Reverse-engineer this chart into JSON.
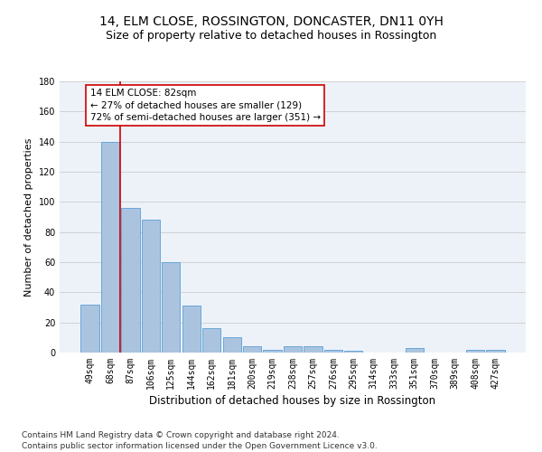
{
  "title": "14, ELM CLOSE, ROSSINGTON, DONCASTER, DN11 0YH",
  "subtitle": "Size of property relative to detached houses in Rossington",
  "xlabel": "Distribution of detached houses by size in Rossington",
  "ylabel": "Number of detached properties",
  "categories": [
    "49sqm",
    "68sqm",
    "87sqm",
    "106sqm",
    "125sqm",
    "144sqm",
    "162sqm",
    "181sqm",
    "200sqm",
    "219sqm",
    "238sqm",
    "257sqm",
    "276sqm",
    "295sqm",
    "314sqm",
    "333sqm",
    "351sqm",
    "370sqm",
    "389sqm",
    "408sqm",
    "427sqm"
  ],
  "values": [
    32,
    140,
    96,
    88,
    60,
    31,
    16,
    10,
    4,
    2,
    4,
    4,
    2,
    1,
    0,
    0,
    3,
    0,
    0,
    2,
    2
  ],
  "bar_color": "#aac4e0",
  "bar_edge_color": "#5a9fd4",
  "vline_x": 1.5,
  "vline_color": "#cc0000",
  "annotation_line1": "14 ELM CLOSE: 82sqm",
  "annotation_line2": "← 27% of detached houses are smaller (129)",
  "annotation_line3": "72% of semi-detached houses are larger (351) →",
  "annotation_box_color": "#ffffff",
  "annotation_box_edge_color": "#cc0000",
  "ylim": [
    0,
    180
  ],
  "yticks": [
    0,
    20,
    40,
    60,
    80,
    100,
    120,
    140,
    160,
    180
  ],
  "grid_color": "#cccccc",
  "bg_color": "#edf2f9",
  "footer_line1": "Contains HM Land Registry data © Crown copyright and database right 2024.",
  "footer_line2": "Contains public sector information licensed under the Open Government Licence v3.0.",
  "title_fontsize": 10,
  "subtitle_fontsize": 9,
  "xlabel_fontsize": 8.5,
  "ylabel_fontsize": 8,
  "tick_fontsize": 7,
  "annotation_fontsize": 7.5,
  "footer_fontsize": 6.5
}
